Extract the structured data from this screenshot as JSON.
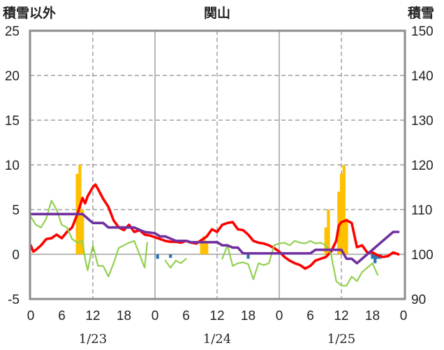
{
  "chart_data": {
    "type": "combo",
    "title": "関山",
    "left_axis_label": "積雪以外",
    "right_axis_label": "積雪",
    "left_ylim": [
      -5,
      25
    ],
    "right_ylim": [
      90,
      150
    ],
    "left_ticks": [
      "25",
      "20",
      "15",
      "10",
      "5",
      "0",
      "-5"
    ],
    "right_ticks": [
      "150",
      "140",
      "130",
      "120",
      "110",
      "100",
      "90"
    ],
    "x_ticks": [
      "0",
      "6",
      "12",
      "18",
      "0",
      "6",
      "12",
      "18",
      "0",
      "6",
      "12",
      "18",
      "0"
    ],
    "dates": [
      "1/23",
      "1/24",
      "1/25"
    ],
    "x_unit_hours": [
      0,
      72
    ],
    "grid": "dashed major gridlines, solid day separators",
    "colors": {
      "red": "#ff0000",
      "green": "#92d050",
      "purple": "#7030a0",
      "orange": "#ffc000",
      "blue": "#2e75b6"
    },
    "series": [
      {
        "type": "bar",
        "axis": "left",
        "color": "#ffc000",
        "points": [
          [
            9,
            9
          ],
          [
            9.5,
            10
          ],
          [
            10,
            5
          ],
          [
            33,
            1.3
          ],
          [
            33.5,
            2
          ],
          [
            34,
            1.3
          ],
          [
            57,
            3
          ],
          [
            57.5,
            5
          ],
          [
            59.5,
            7
          ],
          [
            60,
            9
          ],
          [
            60.5,
            10
          ],
          [
            61,
            4
          ]
        ]
      },
      {
        "type": "bar",
        "axis": "left",
        "color": "#2e75b6",
        "points": [
          [
            24.5,
            -0.5
          ],
          [
            27,
            -0.4
          ],
          [
            42,
            -0.5
          ],
          [
            66,
            -0.5
          ],
          [
            66.5,
            -1
          ],
          [
            67,
            -0.5
          ],
          [
            67.5,
            -0.5
          ]
        ]
      },
      {
        "type": "line",
        "axis": "left",
        "color": "#ff0000",
        "points": [
          [
            0,
            1
          ],
          [
            0.5,
            0.3
          ],
          [
            1,
            0.5
          ],
          [
            2,
            1
          ],
          [
            3,
            1.7
          ],
          [
            4,
            1.8
          ],
          [
            5,
            2.2
          ],
          [
            6,
            1.8
          ],
          [
            7,
            2.5
          ],
          [
            8,
            3
          ],
          [
            9,
            4.5
          ],
          [
            10,
            6.3
          ],
          [
            10.5,
            5.7
          ],
          [
            11,
            6.5
          ],
          [
            12,
            7.5
          ],
          [
            12.5,
            7.8
          ],
          [
            13,
            7.3
          ],
          [
            14,
            6.2
          ],
          [
            15,
            5.3
          ],
          [
            16,
            3.8
          ],
          [
            17,
            3
          ],
          [
            18,
            2.7
          ],
          [
            19,
            3.3
          ],
          [
            20,
            2.5
          ],
          [
            21,
            2.7
          ],
          [
            22,
            2.2
          ],
          [
            23,
            2.1
          ],
          [
            24,
            1.9
          ],
          [
            25,
            1.7
          ],
          [
            26,
            1.5
          ],
          [
            27,
            1.4
          ],
          [
            28,
            1.4
          ],
          [
            29,
            1.3
          ],
          [
            30,
            1.5
          ],
          [
            31,
            1.3
          ],
          [
            32,
            1.2
          ],
          [
            33,
            1.6
          ],
          [
            34,
            2
          ],
          [
            35,
            2.8
          ],
          [
            36,
            2.5
          ],
          [
            37,
            3.3
          ],
          [
            38,
            3.5
          ],
          [
            39,
            3.6
          ],
          [
            40,
            2.8
          ],
          [
            41,
            2.7
          ],
          [
            42,
            2.2
          ],
          [
            43,
            1.5
          ],
          [
            44,
            1.3
          ],
          [
            45,
            1.2
          ],
          [
            46,
            1
          ],
          [
            47,
            0.7
          ],
          [
            48,
            0.3
          ],
          [
            49,
            -0.3
          ],
          [
            50,
            -0.7
          ],
          [
            51,
            -1
          ],
          [
            52,
            -1.2
          ],
          [
            53,
            -1.6
          ],
          [
            54,
            -1.3
          ],
          [
            55,
            -0.7
          ],
          [
            56,
            -0.5
          ],
          [
            57,
            -0.3
          ],
          [
            58,
            0.3
          ],
          [
            59,
            1.5
          ],
          [
            59.5,
            3.2
          ],
          [
            60,
            3.6
          ],
          [
            61,
            3.8
          ],
          [
            62,
            3.5
          ],
          [
            63,
            0.8
          ],
          [
            64,
            1.0
          ],
          [
            65,
            0.2
          ],
          [
            66,
            0.2
          ],
          [
            67,
            -0.1
          ],
          [
            68,
            -0.3
          ],
          [
            69,
            -0.2
          ],
          [
            70,
            0.2
          ],
          [
            71,
            0
          ]
        ]
      },
      {
        "type": "line",
        "axis": "left",
        "color": "#92d050",
        "points": [
          [
            0,
            4.2
          ],
          [
            1,
            3.3
          ],
          [
            2,
            3
          ],
          [
            3,
            4
          ],
          [
            4,
            6
          ],
          [
            5,
            5
          ],
          [
            6,
            3.3
          ],
          [
            7,
            3
          ],
          [
            8,
            1.7
          ],
          [
            9,
            1.3
          ],
          [
            10,
            1.5
          ],
          [
            10.5,
            -0.5
          ],
          [
            11,
            -1.8
          ],
          [
            12,
            1
          ],
          [
            13,
            -1.3
          ],
          [
            14,
            -1.3
          ],
          [
            15,
            -2.5
          ],
          [
            16,
            -1
          ],
          [
            17,
            0.7
          ],
          [
            18,
            1
          ],
          [
            19,
            1.3
          ],
          [
            20,
            1.5
          ],
          [
            21,
            0
          ],
          [
            22,
            -1.5
          ],
          [
            22.5,
            1.3
          ],
          null,
          [
            26,
            -0.7
          ],
          [
            27,
            -1.5
          ],
          [
            28,
            -0.7
          ],
          [
            29,
            -1
          ],
          [
            30,
            -0.5
          ],
          null,
          [
            37,
            -0.5
          ],
          [
            38,
            1
          ],
          [
            39,
            -1.3
          ],
          [
            40,
            -1
          ],
          [
            41,
            -0.9
          ],
          [
            42,
            -1.1
          ],
          [
            43,
            -2.8
          ],
          [
            44,
            -1
          ],
          [
            45,
            -1.2
          ],
          [
            46,
            -1
          ],
          [
            47,
            1
          ],
          [
            48,
            1.2
          ],
          [
            49,
            1.3
          ],
          [
            50,
            1
          ],
          [
            51,
            1.5
          ],
          [
            52,
            1.3
          ],
          [
            53,
            1.2
          ],
          [
            54,
            1.5
          ],
          [
            55,
            1.2
          ],
          [
            56,
            1.3
          ],
          [
            57,
            1
          ],
          [
            58,
            0
          ],
          [
            59,
            -3
          ],
          [
            60,
            -3.5
          ],
          [
            61,
            -3.5
          ],
          [
            62,
            -2.5
          ],
          [
            63,
            -3
          ],
          [
            64,
            -2
          ],
          [
            65,
            -1.5
          ],
          [
            66,
            -1
          ],
          [
            67,
            -2.3
          ]
        ]
      },
      {
        "type": "line",
        "axis": "right",
        "color": "#7030a0",
        "points": [
          [
            0,
            109
          ],
          [
            10,
            109
          ],
          [
            12,
            107
          ],
          [
            14,
            107
          ],
          [
            15,
            106
          ],
          [
            20,
            106
          ],
          [
            22,
            105
          ],
          [
            24,
            104.7
          ],
          [
            25,
            104
          ],
          [
            26,
            104
          ],
          [
            27,
            103.5
          ],
          [
            28,
            103
          ],
          [
            30,
            103
          ],
          [
            31,
            102.7
          ],
          [
            36,
            102.7
          ],
          [
            37,
            102
          ],
          [
            38,
            102
          ],
          [
            39,
            101.5
          ],
          [
            40,
            101.5
          ],
          [
            41,
            100.2
          ],
          [
            54,
            100.2
          ],
          [
            55,
            101
          ],
          [
            60,
            101
          ],
          [
            61,
            99
          ],
          [
            62,
            99
          ],
          [
            63,
            98
          ],
          [
            64,
            99
          ],
          [
            65,
            100
          ],
          [
            66,
            101
          ],
          [
            67,
            102
          ],
          [
            68,
            103
          ],
          [
            69,
            104
          ],
          [
            70,
            105
          ],
          [
            71,
            105
          ]
        ]
      }
    ]
  }
}
